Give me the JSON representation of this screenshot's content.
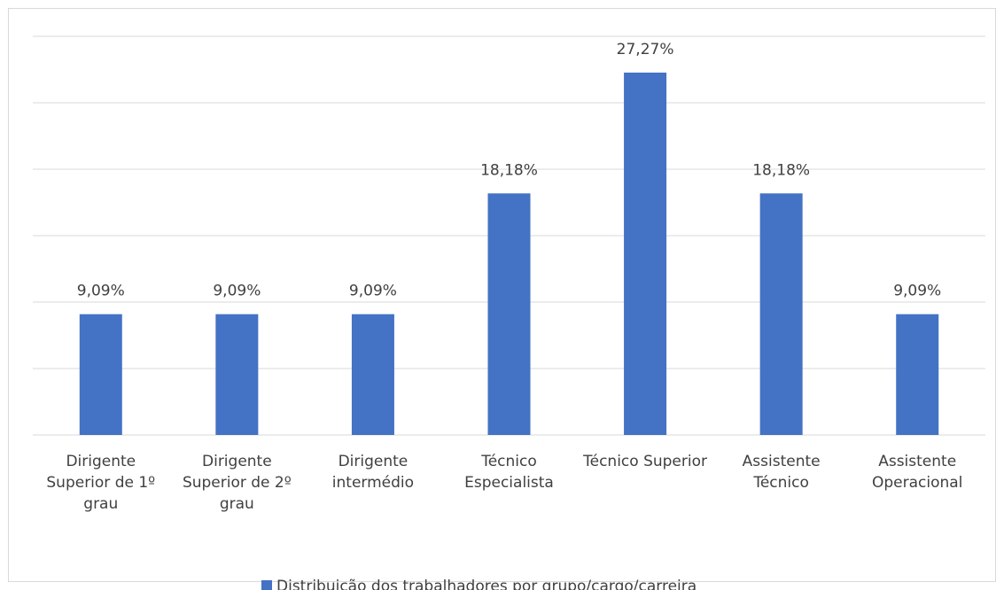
{
  "chart_data": {
    "type": "bar",
    "categories": [
      "Dirigente Superior de 1º grau",
      "Dirigente Superior de 2º grau",
      "Dirigente intermédio",
      "Técnico Especialista",
      "Técnico Superior",
      "Assistente Técnico",
      "Assistente Operacional"
    ],
    "series": [
      {
        "name": "Distribuição dos trabalhadores por grupo/cargo/carreira",
        "color": "#4472c4",
        "values": [
          9.09,
          9.09,
          9.09,
          18.18,
          27.27,
          18.18,
          9.09
        ],
        "value_labels": [
          "9,09%",
          "9,09%",
          "9,09%",
          "18,18%",
          "27,27%",
          "18,18%",
          "9,09%"
        ]
      }
    ],
    "ylim": [
      0,
      30
    ],
    "yticks": [
      0,
      5,
      10,
      15,
      20,
      25,
      30
    ],
    "grid": true,
    "legend": "bottom"
  }
}
